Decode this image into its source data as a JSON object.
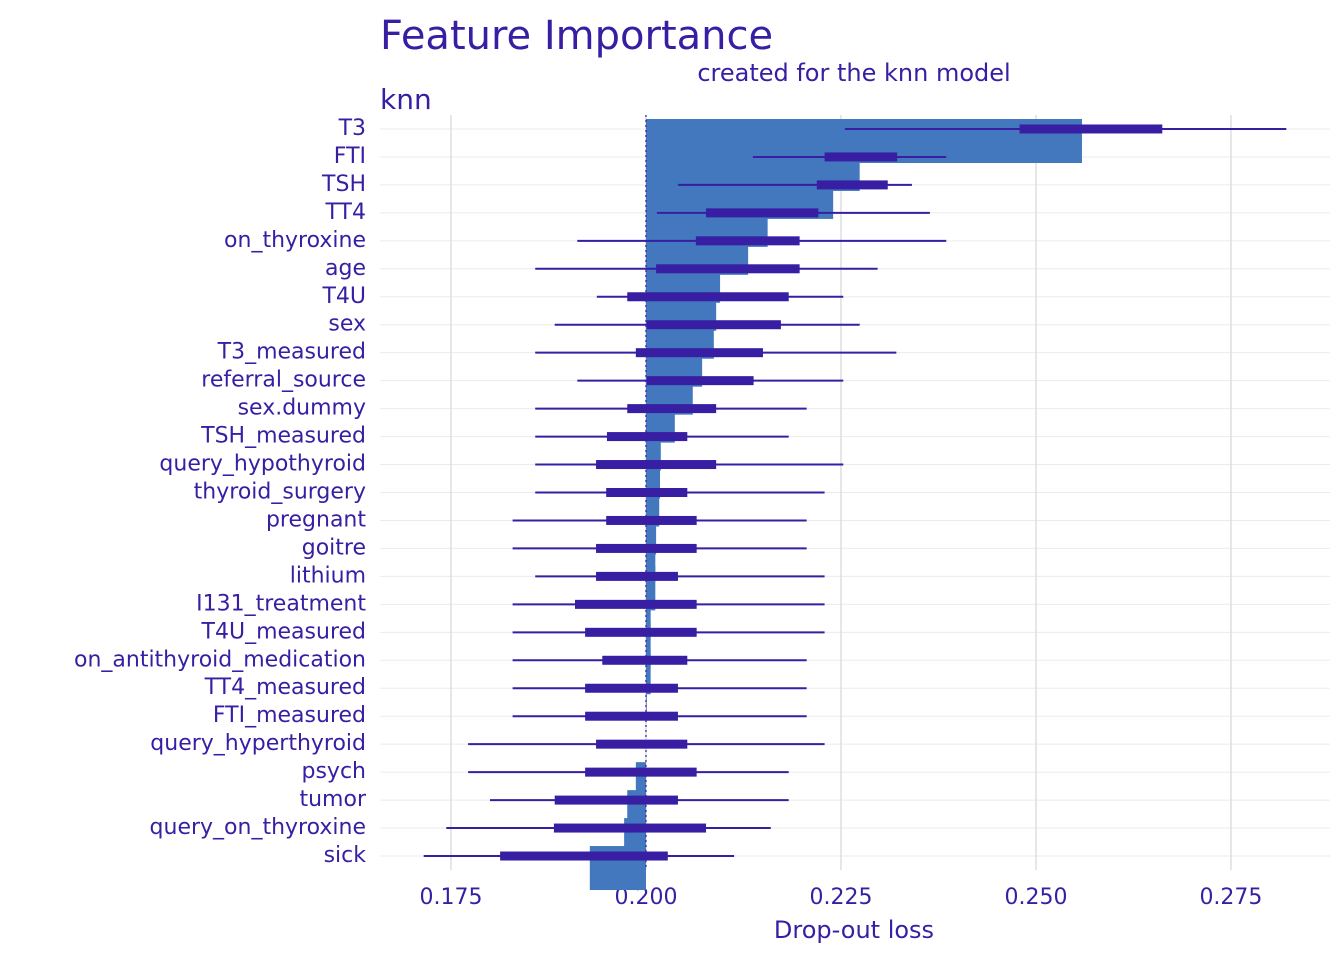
{
  "chart_data": {
    "type": "feature-importance",
    "title": "Feature Importance",
    "subtitle": "created for the knn model",
    "facet": "knn",
    "xlabel": "Drop-out loss",
    "categories": [
      "T3",
      "FTI",
      "TSH",
      "TT4",
      "on_thyroxine",
      "age",
      "T4U",
      "sex",
      "T3_measured",
      "referral_source",
      "sex.dummy",
      "TSH_measured",
      "query_hypothyroid",
      "thyroid_surgery",
      "pregnant",
      "goitre",
      "lithium",
      "I131_treatment",
      "T4U_measured",
      "on_antithyroid_medication",
      "TT4_measured",
      "FTI_measured",
      "query_hyperthyroid",
      "psych",
      "tumor",
      "query_on_thyroxine",
      "sick"
    ],
    "values": [
      0.2559,
      0.2274,
      0.224,
      0.2156,
      0.2131,
      0.2095,
      0.209,
      0.2087,
      0.2072,
      0.206,
      0.2037,
      0.2019,
      0.2018,
      0.2017,
      0.2013,
      0.2012,
      0.2012,
      0.2006,
      0.2006,
      0.2006,
      0.2001,
      0.2,
      0.2,
      0.1987,
      0.1976,
      0.1972,
      0.1928
    ],
    "whisker_low": [
      0.2255,
      0.2137,
      0.2041,
      0.2014,
      0.1912,
      0.1858,
      0.1937,
      0.1883,
      0.1858,
      0.1912,
      0.1858,
      0.1858,
      0.1858,
      0.1858,
      0.1829,
      0.1829,
      0.1858,
      0.1829,
      0.1829,
      0.1829,
      0.1829,
      0.1829,
      0.1772,
      0.1772,
      0.18,
      0.1744,
      0.1715
    ],
    "q1": [
      0.2479,
      0.2229,
      0.2219,
      0.2077,
      0.2064,
      0.2013,
      0.1976,
      0.2001,
      0.1987,
      0.2001,
      0.1976,
      0.195,
      0.1936,
      0.1949,
      0.1949,
      0.1936,
      0.1936,
      0.1909,
      0.1922,
      0.1944,
      0.1922,
      0.1922,
      0.1936,
      0.1922,
      0.1883,
      0.1882,
      0.1813
    ],
    "q3": [
      0.2662,
      0.2322,
      0.231,
      0.2221,
      0.2197,
      0.2197,
      0.2183,
      0.2173,
      0.215,
      0.2138,
      0.209,
      0.2053,
      0.209,
      0.2053,
      0.2065,
      0.2065,
      0.2041,
      0.2065,
      0.2065,
      0.2053,
      0.2041,
      0.2041,
      0.2053,
      0.2065,
      0.2041,
      0.2077,
      0.2028
    ],
    "whisker_high": [
      0.2821,
      0.2385,
      0.2341,
      0.2364,
      0.2385,
      0.2297,
      0.2253,
      0.2274,
      0.2321,
      0.2253,
      0.2206,
      0.2183,
      0.2253,
      0.2229,
      0.2206,
      0.2206,
      0.2229,
      0.2229,
      0.2229,
      0.2206,
      0.2206,
      0.2206,
      0.2229,
      0.2183,
      0.2183,
      0.216,
      0.2113
    ],
    "baseline": 0.2,
    "bar_color": "#4378bf",
    "box_color": "#371ea3",
    "xlim": [
      0.1659,
      0.2877
    ],
    "xticks": [
      0.175,
      {
        "value": 0.2,
        "label": "0.200"
      },
      0.225,
      {
        "value": 0.25,
        "label": "0.250"
      },
      0.275
    ],
    "grid": true
  }
}
